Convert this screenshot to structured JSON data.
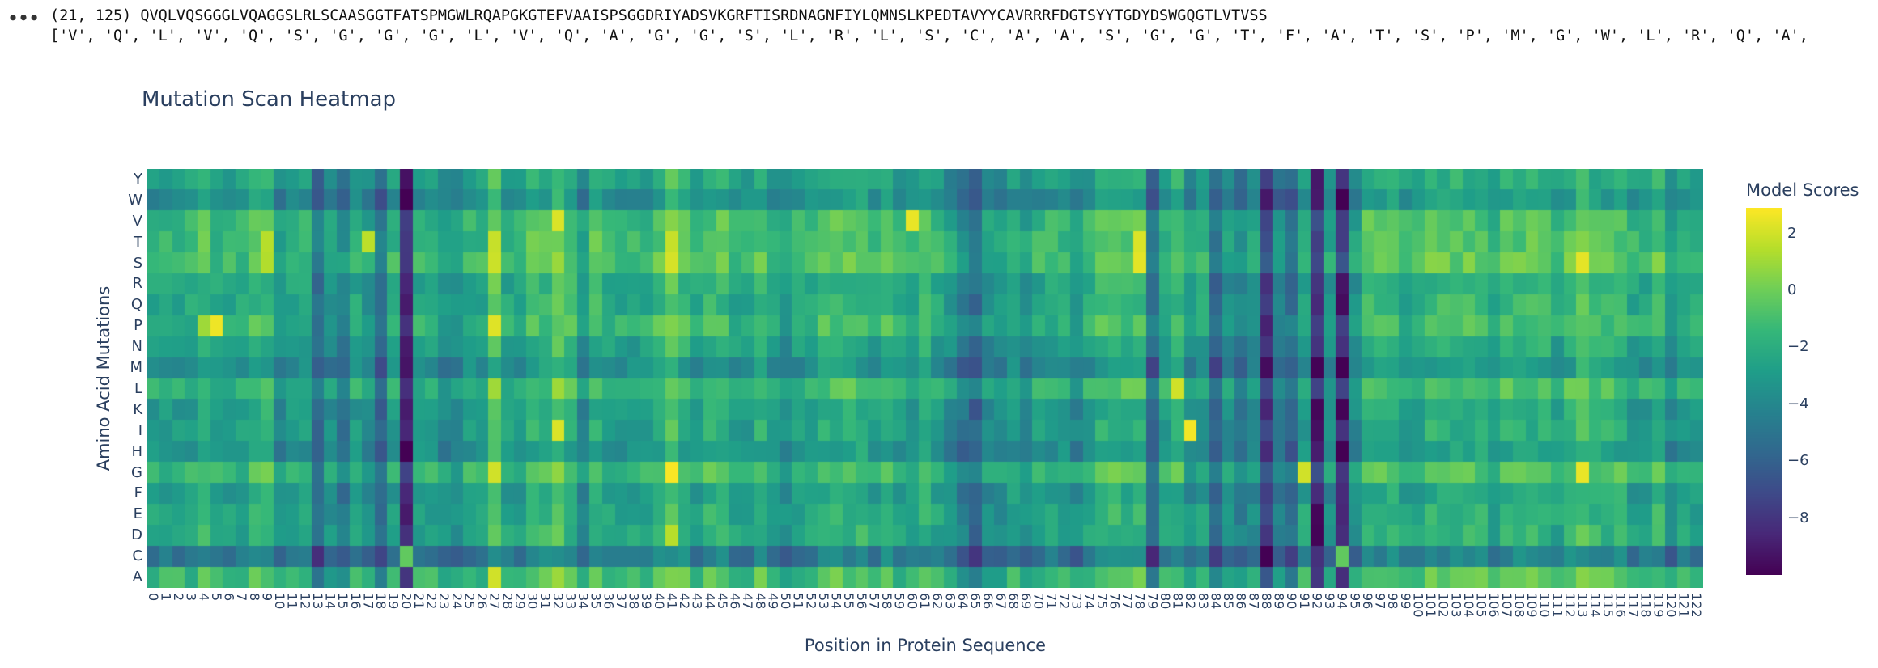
{
  "notebook_output": {
    "ellipsis": "•••",
    "line1": "(21, 125) QVQLVQSGGGLVQAGGSLRLSCAASGGTFATSPMGWLRQAPGKGTEFVAAISPSGGDRIYADSVKGRFTISRDNAGNFIYLQMNSLKPEDTAVYYCAVRRRFDGTSYYTGDYDSWGQGTLVTVSS",
    "line2": "['V', 'Q', 'L', 'V', 'Q', 'S', 'G', 'G', 'G', 'L', 'V', 'Q', 'A', 'G', 'G', 'S', 'L', 'R', 'L', 'S', 'C', 'A', 'A', 'S', 'G', 'G', 'T', 'F', 'A', 'T', 'S', 'P', 'M', 'G', 'W', 'L', 'R', 'Q', 'A',"
  },
  "chart_data": {
    "type": "heatmap",
    "title": "Mutation Scan Heatmap",
    "xlabel": "Position in Protein Sequence",
    "ylabel": "Amino Acid Mutations",
    "colorbar_title": "Model Scores",
    "colorscale": "Viridis",
    "zlim": [
      -10,
      2.9
    ],
    "colorbar_ticks": [
      2,
      0,
      -2,
      -4,
      -6,
      -8
    ],
    "colorbar_tick_labels": [
      "2",
      "0",
      "−2",
      "−4",
      "−6",
      "−8"
    ],
    "x_categories_count": 123,
    "x_tick_labels": [
      "0",
      "1",
      "2",
      "3",
      "4",
      "5",
      "6",
      "7",
      "8",
      "9",
      "10",
      "11",
      "12",
      "13",
      "14",
      "15",
      "16",
      "17",
      "18",
      "19",
      "20",
      "21",
      "22",
      "23",
      "24",
      "25",
      "26",
      "27",
      "28",
      "29",
      "30",
      "31",
      "32",
      "33",
      "34",
      "35",
      "36",
      "37",
      "38",
      "39",
      "40",
      "41",
      "42",
      "43",
      "44",
      "45",
      "46",
      "47",
      "48",
      "49",
      "50",
      "51",
      "52",
      "53",
      "54",
      "55",
      "56",
      "57",
      "58",
      "59",
      "60",
      "61",
      "62",
      "63",
      "64",
      "65",
      "66",
      "67",
      "68",
      "69",
      "70",
      "71",
      "72",
      "73",
      "74",
      "75",
      "76",
      "77",
      "78",
      "79",
      "80",
      "81",
      "82",
      "83",
      "84",
      "85",
      "86",
      "87",
      "88",
      "89",
      "90",
      "91",
      "92",
      "93",
      "94",
      "95",
      "96",
      "97",
      "98",
      "99",
      "100",
      "101",
      "102",
      "103",
      "104",
      "105",
      "106",
      "107",
      "108",
      "109",
      "110",
      "111",
      "112",
      "113",
      "114",
      "115",
      "116",
      "117",
      "118",
      "119",
      "120",
      "121",
      "122"
    ],
    "y_categories_top_to_bottom": [
      "Y",
      "W",
      "V",
      "T",
      "S",
      "R",
      "Q",
      "P",
      "N",
      "M",
      "L",
      "K",
      "I",
      "H",
      "G",
      "F",
      "E",
      "D",
      "C",
      "A"
    ],
    "column_baseline_scores": [
      -2,
      -2,
      -2,
      -2,
      -1,
      -2,
      -2,
      -2,
      -1,
      -1,
      -3,
      -2,
      -2,
      -5,
      -3,
      -4,
      -2,
      -3,
      -5,
      -2,
      -8,
      -2,
      -2,
      -3,
      -3,
      -2,
      -2,
      0,
      -2,
      -2,
      -1,
      -1,
      0,
      -1,
      -3,
      -1,
      -2,
      -2,
      -2,
      -2,
      -1,
      0,
      -1,
      -2,
      -1,
      -1,
      -2,
      -2,
      -1,
      -2,
      -3,
      -2,
      -2,
      -1,
      -1,
      -1,
      -1,
      -2,
      -1,
      -2,
      -2,
      -1,
      -2,
      -3,
      -4,
      -5,
      -3,
      -3,
      -2,
      -3,
      -2,
      -2,
      -2,
      -3,
      -2,
      -1,
      -1,
      -1,
      -1,
      -5,
      -2,
      -1,
      -3,
      -2,
      -5,
      -3,
      -4,
      -3,
      -7,
      -4,
      -5,
      -2,
      -8,
      -3,
      -8,
      -3,
      -1,
      -1,
      -1,
      -2,
      -2,
      -1,
      -1,
      -1,
      -1,
      -1,
      -2,
      -1,
      -1,
      -1,
      -1,
      -2,
      -1,
      0,
      -1,
      -1,
      -1,
      -2,
      -2,
      -1,
      -3,
      -2,
      -2
    ],
    "row_offsets": {
      "Y": -0.8,
      "W": -1.8,
      "V": 0.4,
      "T": 0.5,
      "S": 0.8,
      "R": -0.5,
      "Q": -0.3,
      "P": 0.2,
      "N": -0.8,
      "M": -1.8,
      "L": 0.3,
      "K": -1.0,
      "I": -0.8,
      "H": -1.5,
      "G": 0.5,
      "F": -1.0,
      "E": -0.5,
      "D": -0.5,
      "C": -3.0,
      "A": 0.5
    },
    "highlights": [
      {
        "row": "P",
        "col": 5,
        "value": 2.6
      },
      {
        "row": "P",
        "col": 4,
        "value": 1.0
      },
      {
        "row": "T",
        "col": 9,
        "value": 1.5
      },
      {
        "row": "S",
        "col": 9,
        "value": 1.4
      },
      {
        "row": "T",
        "col": 17,
        "value": 1.6
      },
      {
        "row": "V",
        "col": 32,
        "value": 2.2
      },
      {
        "row": "I",
        "col": 32,
        "value": 2.2
      },
      {
        "row": "T",
        "col": 27,
        "value": 1.8
      },
      {
        "row": "S",
        "col": 27,
        "value": 1.9
      },
      {
        "row": "P",
        "col": 27,
        "value": 2.3
      },
      {
        "row": "G",
        "col": 27,
        "value": 2.0
      },
      {
        "row": "A",
        "col": 27,
        "value": 2.0
      },
      {
        "row": "T",
        "col": 41,
        "value": 1.8
      },
      {
        "row": "S",
        "col": 41,
        "value": 2.1
      },
      {
        "row": "G",
        "col": 41,
        "value": 2.8
      },
      {
        "row": "D",
        "col": 41,
        "value": 1.5
      },
      {
        "row": "V",
        "col": 60,
        "value": 2.5
      },
      {
        "row": "S",
        "col": 78,
        "value": 2.4
      },
      {
        "row": "T",
        "col": 78,
        "value": 2.2
      },
      {
        "row": "I",
        "col": 82,
        "value": 2.7
      },
      {
        "row": "L",
        "col": 81,
        "value": 2.0
      },
      {
        "row": "G",
        "col": 91,
        "value": 2.0
      },
      {
        "row": "S",
        "col": 113,
        "value": 2.4
      },
      {
        "row": "G",
        "col": 113,
        "value": 2.5
      },
      {
        "row": "C",
        "col": 20,
        "value": -0.3
      },
      {
        "row": "C",
        "col": 94,
        "value": -0.3
      },
      {
        "row": "C",
        "col": 65,
        "value": -8.0
      },
      {
        "row": "C",
        "col": 92,
        "value": -8.2
      },
      {
        "row": "K",
        "col": 92,
        "value": -9.8
      },
      {
        "row": "K",
        "col": 94,
        "value": -9.9
      },
      {
        "row": "P",
        "col": 88,
        "value": -8.8
      },
      {
        "row": "I",
        "col": 92,
        "value": -9.5
      },
      {
        "row": "E",
        "col": 92,
        "value": -9.8
      },
      {
        "row": "D",
        "col": 92,
        "value": -9.9
      },
      {
        "row": "Q",
        "col": 94,
        "value": -9.6
      },
      {
        "row": "R",
        "col": 94,
        "value": -9.3
      },
      {
        "row": "K",
        "col": 20,
        "value": -9.0
      },
      {
        "row": "P",
        "col": 21,
        "value": -1.0
      }
    ]
  }
}
